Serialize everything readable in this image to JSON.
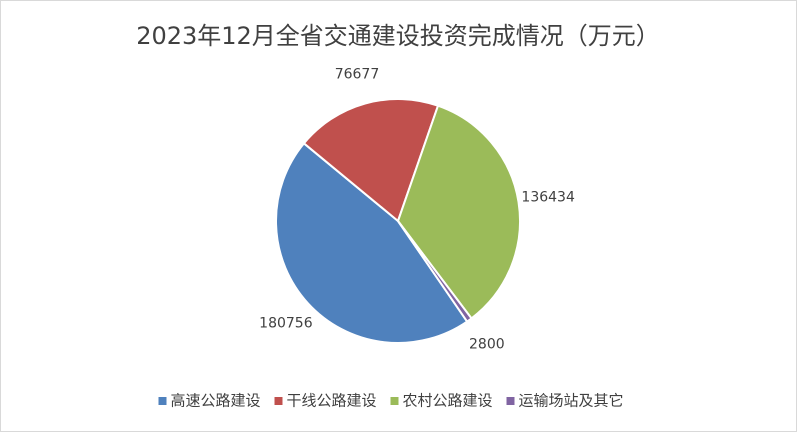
{
  "chart_data": {
    "type": "pie",
    "title": "2023年12月全省交通建设投资完成情况（万元）",
    "categories": [
      "高速公路建设",
      "干线公路建设",
      "农村公路建设",
      "运输场站及其它"
    ],
    "values": [
      180756,
      76677,
      136434,
      2800
    ],
    "colors": [
      "#4f81bd",
      "#c0504d",
      "#9bbb59",
      "#8064a2"
    ],
    "legend": "bottom"
  }
}
